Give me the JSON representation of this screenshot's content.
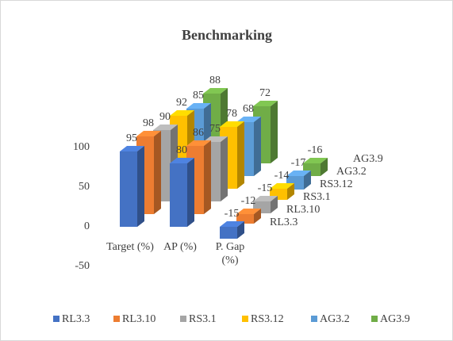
{
  "chart_data": {
    "type": "bar3d",
    "title": "Benchmarking",
    "categories": [
      "Target (%)",
      "AP (%)",
      "P. Gap (%)"
    ],
    "series": [
      {
        "name": "RL3.3",
        "color": "#4472c4",
        "values": [
          95,
          80,
          -15
        ]
      },
      {
        "name": "RL3.10",
        "color": "#ed7d31",
        "values": [
          98,
          86,
          -12
        ]
      },
      {
        "name": "RS3.1",
        "color": "#a5a5a5",
        "values": [
          90,
          75,
          -15
        ]
      },
      {
        "name": "RS3.12",
        "color": "#ffc000",
        "values": [
          92,
          78,
          -14
        ]
      },
      {
        "name": "AG3.2",
        "color": "#5b9bd5",
        "values": [
          85,
          68,
          -17
        ]
      },
      {
        "name": "AG3.9",
        "color": "#70ad47",
        "values": [
          88,
          72,
          -16
        ]
      }
    ],
    "ylim": [
      -50,
      100
    ],
    "yticks": [
      -50,
      0,
      50,
      100
    ],
    "grid": false,
    "legend": "bottom"
  }
}
